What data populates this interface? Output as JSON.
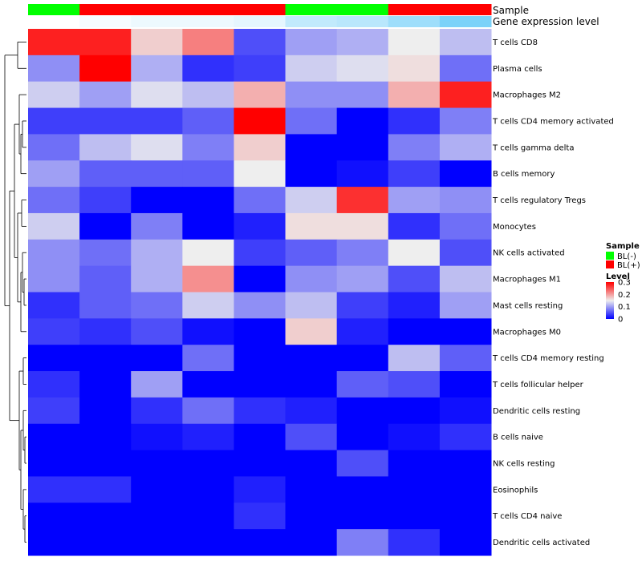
{
  "chart_data": {
    "type": "heatmap",
    "annotation_rows": {
      "sample_label": "Sample",
      "gene_label": "Gene expression level"
    },
    "sample_groups": [
      "BL(-)",
      "BL(+)",
      "BL(+)",
      "BL(+)",
      "BL(+)",
      "BL(-)",
      "BL(-)",
      "BL(+)",
      "BL(+)"
    ],
    "gene_expression": [
      0.0,
      0.05,
      0.1,
      0.1,
      0.15,
      0.35,
      0.4,
      0.55,
      0.75
    ],
    "rows": [
      "T cells CD8",
      "Plasma cells",
      "Macrophages M2",
      "T cells CD4 memory activated",
      "T cells gamma delta",
      "B cells memory",
      "T cells regulatory  Tregs",
      "Monocytes",
      "NK cells activated",
      "Macrophages M1",
      "Mast cells resting",
      "Macrophages M0",
      "T cells CD4 memory resting",
      "T cells follicular helper",
      "Dendritic cells resting",
      "B cells naive",
      "NK cells resting",
      "Eosinophils",
      "T cells CD4 naive",
      "Dendritic cells activated"
    ],
    "values": [
      [
        0.28,
        0.28,
        0.17,
        0.22,
        0.05,
        0.1,
        0.11,
        0.15,
        0.12
      ],
      [
        0.09,
        0.3,
        0.11,
        0.03,
        0.04,
        0.13,
        0.14,
        0.16,
        0.07
      ],
      [
        0.13,
        0.1,
        0.14,
        0.12,
        0.19,
        0.09,
        0.09,
        0.19,
        0.28
      ],
      [
        0.04,
        0.04,
        0.04,
        0.06,
        0.3,
        0.07,
        0.0,
        0.03,
        0.08
      ],
      [
        0.07,
        0.12,
        0.14,
        0.08,
        0.17,
        0.0,
        0.0,
        0.08,
        0.11
      ],
      [
        0.1,
        0.06,
        0.06,
        0.06,
        0.15,
        0.0,
        0.01,
        0.04,
        0.0
      ],
      [
        0.07,
        0.04,
        0.0,
        0.0,
        0.07,
        0.13,
        0.27,
        0.1,
        0.09
      ],
      [
        0.13,
        0.0,
        0.08,
        0.0,
        0.02,
        0.16,
        0.16,
        0.03,
        0.07
      ],
      [
        0.09,
        0.07,
        0.11,
        0.15,
        0.04,
        0.06,
        0.08,
        0.15,
        0.05
      ],
      [
        0.09,
        0.06,
        0.11,
        0.21,
        0.0,
        0.09,
        0.1,
        0.05,
        0.12
      ],
      [
        0.03,
        0.06,
        0.07,
        0.13,
        0.09,
        0.12,
        0.04,
        0.02,
        0.1
      ],
      [
        0.04,
        0.03,
        0.05,
        0.01,
        0.0,
        0.17,
        0.02,
        0.0,
        0.0
      ],
      [
        0.0,
        0.0,
        0.0,
        0.07,
        0.0,
        0.0,
        0.0,
        0.12,
        0.06
      ],
      [
        0.03,
        0.0,
        0.1,
        0.0,
        0.0,
        0.0,
        0.06,
        0.05,
        0.0
      ],
      [
        0.04,
        0.0,
        0.03,
        0.07,
        0.03,
        0.02,
        0.0,
        0.0,
        0.01
      ],
      [
        0.0,
        0.0,
        0.01,
        0.02,
        0.0,
        0.05,
        0.0,
        0.01,
        0.03
      ],
      [
        0.0,
        0.0,
        0.0,
        0.0,
        0.0,
        0.0,
        0.05,
        0.0,
        0.0
      ],
      [
        0.03,
        0.03,
        0.0,
        0.0,
        0.02,
        0.0,
        0.0,
        0.0,
        0.0
      ],
      [
        0.0,
        0.0,
        0.0,
        0.0,
        0.03,
        0.0,
        0.0,
        0.0,
        0.0
      ],
      [
        0.0,
        0.0,
        0.0,
        0.0,
        0.0,
        0.0,
        0.08,
        0.03,
        0.0
      ]
    ],
    "color_scale": {
      "low": "#0000ff",
      "mid": "#eeeeee",
      "high": "#ff0000",
      "min": 0,
      "mid_value": 0.15,
      "max": 0.3
    },
    "sample_colors": {
      "BL(-)": "#00ff00",
      "BL(+)": "#ff0000"
    },
    "gene_colors": {
      "low": "#ffffff",
      "high": "#4fc3f7"
    },
    "legend": {
      "placement": "right",
      "sample_title": "Sample",
      "sample_items": [
        "BL(-)",
        "BL(+)"
      ],
      "level_title": "Level",
      "level_ticks": [
        "0.3",
        "0.2",
        "0.1",
        "0"
      ],
      "level_tick_values": [
        0.3,
        0.2,
        0.1,
        0
      ]
    },
    "row_dendrogram": true
  }
}
